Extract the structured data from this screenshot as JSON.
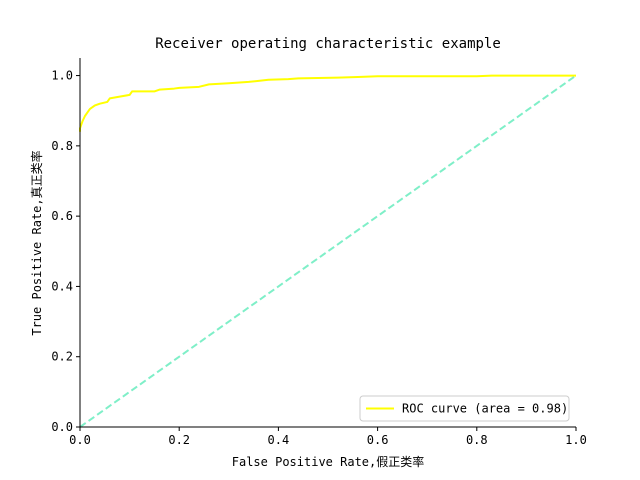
{
  "chart_data": {
    "type": "line",
    "title": "Receiver operating characteristic example",
    "xlabel": "False Positive Rate,假正类率",
    "ylabel": "True Positive Rate,真正类率",
    "xlim": [
      0,
      1
    ],
    "ylim": [
      0,
      1.05
    ],
    "xticks": [
      0.0,
      0.2,
      0.4,
      0.6,
      0.8,
      1.0
    ],
    "xtick_labels": [
      "0.0",
      "0.2",
      "0.4",
      "0.6",
      "0.8",
      "1.0"
    ],
    "yticks": [
      0.0,
      0.2,
      0.4,
      0.6,
      0.8,
      1.0
    ],
    "ytick_labels": [
      "0.0",
      "0.2",
      "0.4",
      "0.6",
      "0.8",
      "1.0"
    ],
    "grid": false,
    "legend_position": "lower-right",
    "series": [
      {
        "name": "ROC curve (area = 0.98)",
        "color": "#ffff00",
        "style": "solid",
        "x": [
          0.0,
          0.0,
          0.005,
          0.01,
          0.015,
          0.02,
          0.03,
          0.04,
          0.055,
          0.06,
          0.08,
          0.1,
          0.105,
          0.15,
          0.16,
          0.19,
          0.2,
          0.24,
          0.26,
          0.3,
          0.34,
          0.36,
          0.38,
          0.42,
          0.44,
          0.48,
          0.52,
          0.56,
          0.6,
          0.7,
          0.8,
          0.83,
          0.9,
          1.0
        ],
        "y": [
          0.84,
          0.85,
          0.87,
          0.885,
          0.895,
          0.905,
          0.915,
          0.92,
          0.925,
          0.935,
          0.94,
          0.945,
          0.955,
          0.955,
          0.96,
          0.963,
          0.965,
          0.968,
          0.975,
          0.978,
          0.982,
          0.985,
          0.988,
          0.99,
          0.992,
          0.993,
          0.994,
          0.996,
          0.998,
          0.998,
          0.998,
          1.0,
          1.0,
          1.0
        ]
      },
      {
        "name": "",
        "color": "#7fefc8",
        "style": "dashed",
        "x": [
          0.0,
          1.0
        ],
        "y": [
          0.0,
          1.0
        ]
      }
    ]
  }
}
